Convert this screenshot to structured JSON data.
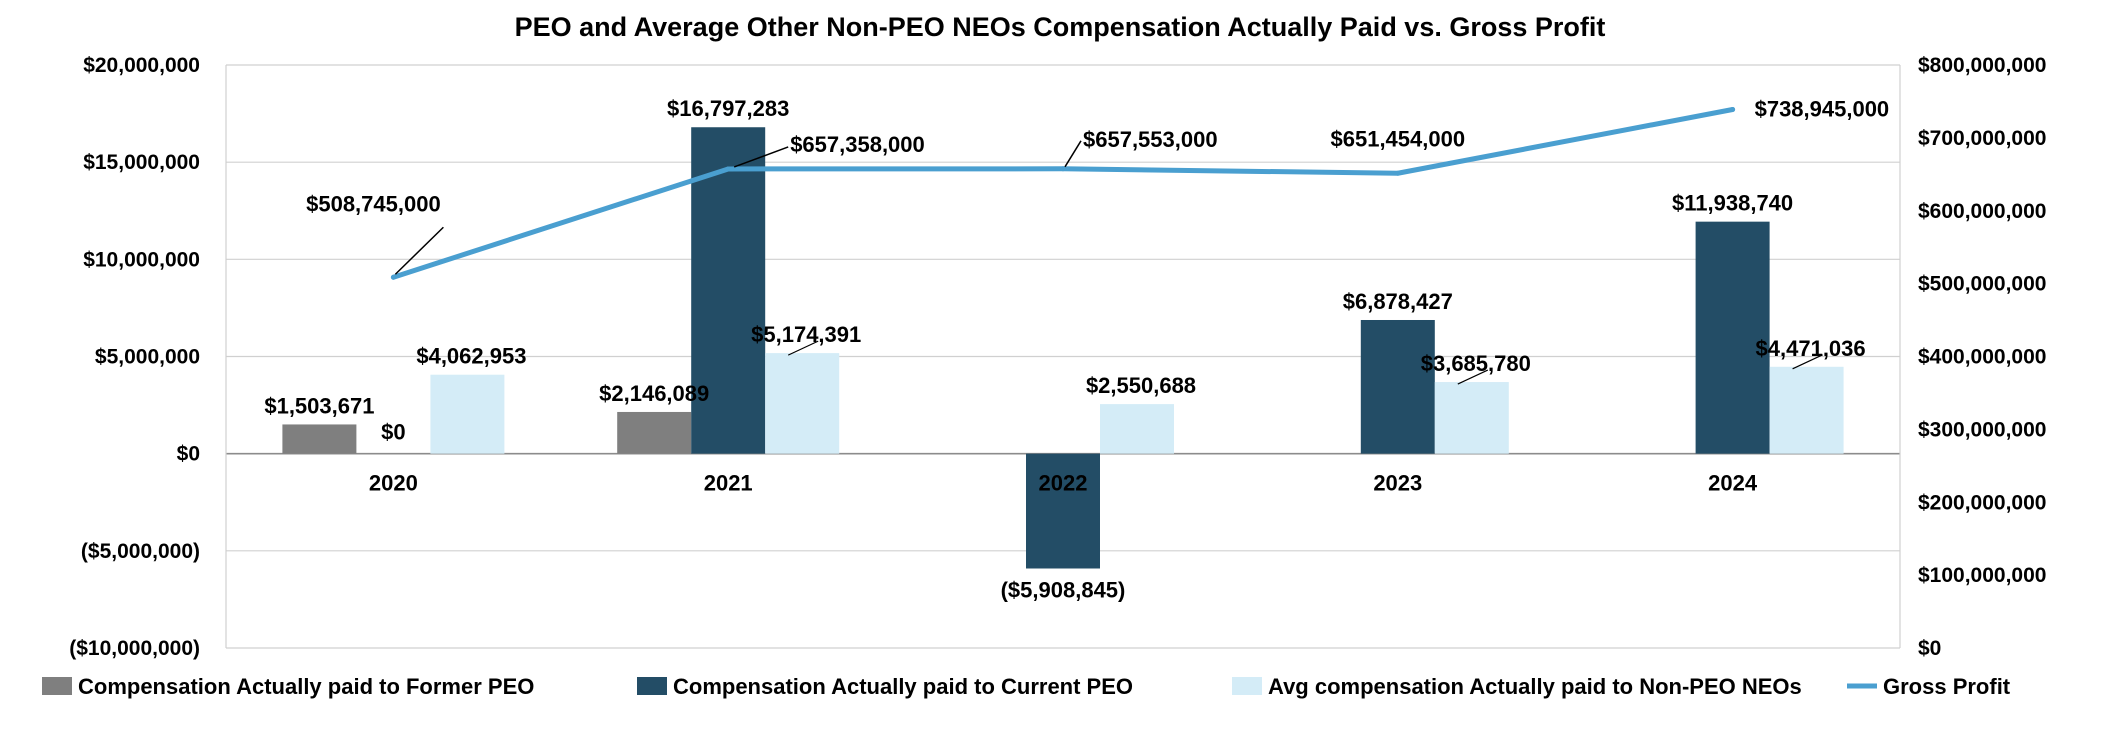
{
  "chart_data": {
    "type": "bar",
    "title": "PEO and Average Other Non-PEO NEOs Compensation Actually Paid vs. Gross Profit",
    "categories": [
      "2020",
      "2021",
      "2022",
      "2023",
      "2024"
    ],
    "series": [
      {
        "name": "Compensation Actually paid to Former PEO",
        "type": "bar",
        "axis": "left",
        "color": "#7f7f7f",
        "values": [
          1503671,
          2146089,
          null,
          null,
          null
        ],
        "labels": [
          "$1,503,671",
          "$2,146,089",
          "",
          "",
          ""
        ]
      },
      {
        "name": "Compensation Actually paid to Current PEO",
        "type": "bar",
        "axis": "left",
        "color": "#234d66",
        "values": [
          0,
          16797283,
          -5908845,
          6878427,
          11938740
        ],
        "labels": [
          "$0",
          "$16,797,283",
          "($5,908,845)",
          "$6,878,427",
          "$11,938,740"
        ]
      },
      {
        "name": "Avg compensation Actually paid to Non-PEO NEOs",
        "type": "bar",
        "axis": "left",
        "color": "#d4ecf7",
        "values": [
          4062953,
          5174391,
          2550688,
          3685780,
          4471036
        ],
        "labels": [
          "$4,062,953",
          "$5,174,391",
          "$2,550,688",
          "$3,685,780",
          "$4,471,036"
        ]
      },
      {
        "name": "Gross Profit",
        "type": "line",
        "axis": "right",
        "color": "#4a9fd0",
        "values": [
          508745000,
          657358000,
          657553000,
          651454000,
          738945000
        ],
        "labels": [
          "$508,745,000",
          "$657,358,000",
          "$657,553,000",
          "$651,454,000",
          "$738,945,000"
        ]
      }
    ],
    "y_left": {
      "min": -10000000,
      "max": 20000000,
      "ticks": [
        20000000,
        15000000,
        10000000,
        5000000,
        0,
        -5000000,
        -10000000
      ],
      "tick_labels": [
        "$20,000,000",
        "$15,000,000",
        "$10,000,000",
        "$5,000,000",
        "$0",
        "($5,000,000)",
        "($10,000,000)"
      ]
    },
    "y_right": {
      "min": 0,
      "max": 800000000,
      "ticks": [
        800000000,
        700000000,
        600000000,
        500000000,
        400000000,
        300000000,
        200000000,
        100000000,
        0
      ],
      "tick_labels": [
        "$800,000,000",
        "$700,000,000",
        "$600,000,000",
        "$500,000,000",
        "$400,000,000",
        "$300,000,000",
        "$200,000,000",
        "$100,000,000",
        "$0"
      ]
    },
    "negative_color": "#e03c31",
    "grid": true,
    "legend_position": "bottom"
  }
}
